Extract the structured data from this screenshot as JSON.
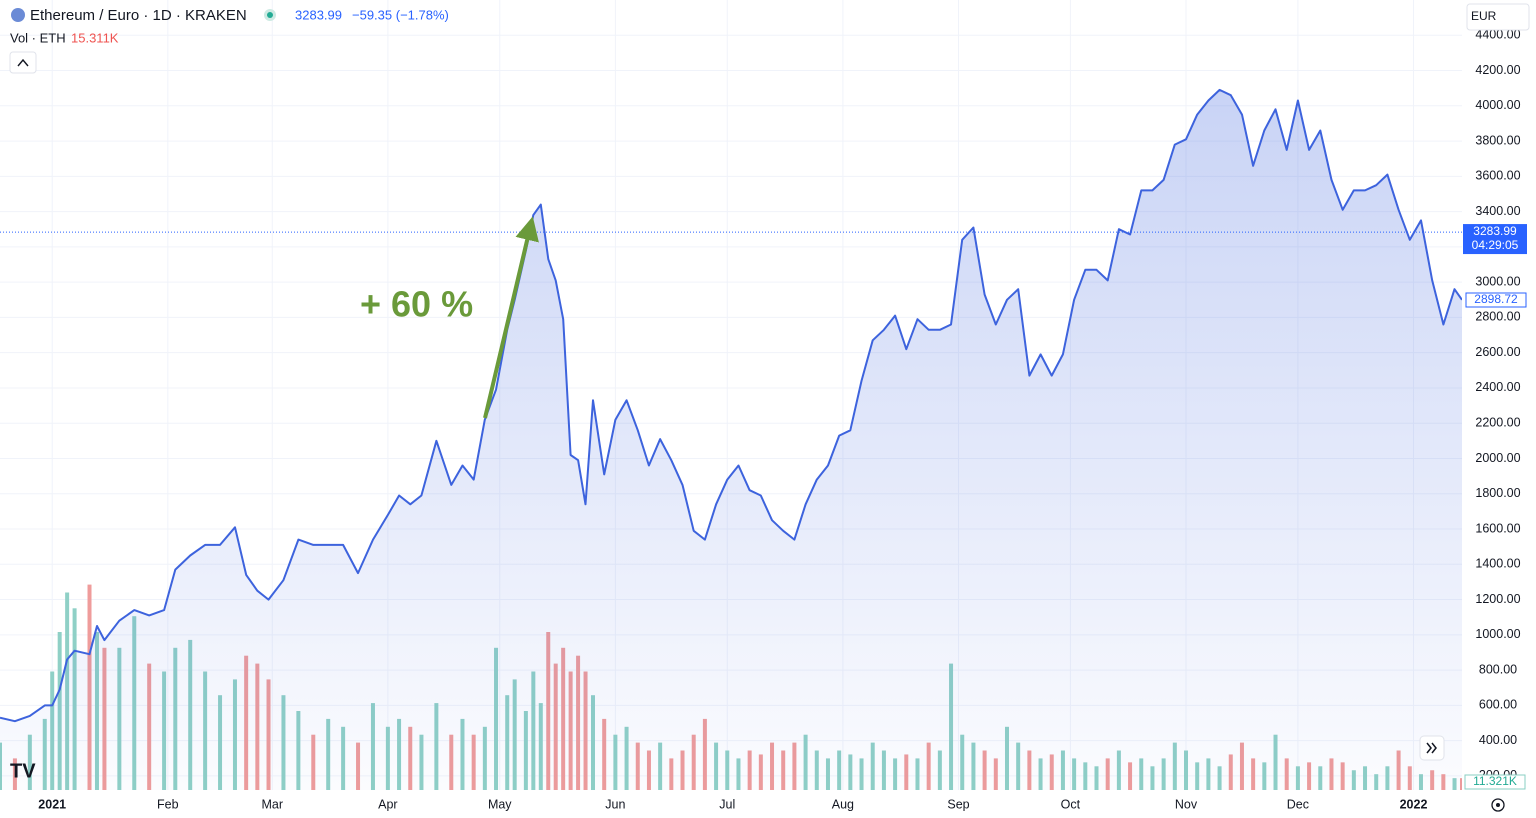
{
  "chart_data": {
    "type": "line",
    "title": "Ethereum / Euro · 1D · KRAKEN",
    "last_price": 3283.99,
    "change": "−59.35 (−1.78%)",
    "volume_label": "Vol · ETH",
    "volume_last": "15.311K",
    "currency": "EUR",
    "countdown": "04:29:05",
    "volume_tag": "11.321K",
    "annotation": "+ 60 %",
    "grid": true,
    "x": [
      -14,
      -10,
      -6,
      -2,
      0,
      2,
      4,
      6,
      10,
      12,
      14,
      18,
      22,
      26,
      30,
      33,
      37,
      41,
      45,
      49,
      52,
      55,
      58,
      62,
      66,
      70,
      74,
      78,
      82,
      86,
      90,
      93,
      96,
      99,
      103,
      107,
      110,
      113,
      116,
      119,
      122,
      124,
      127,
      129,
      131,
      133,
      135,
      137,
      139,
      141,
      143,
      145,
      148,
      151,
      154,
      157,
      160,
      163,
      166,
      169,
      172,
      175,
      178,
      181,
      184,
      187,
      190,
      193,
      196,
      199,
      202,
      205,
      208,
      211,
      214,
      217,
      220,
      223,
      226,
      229,
      232,
      235,
      238,
      241,
      244,
      247,
      250,
      253,
      256,
      259,
      262,
      265,
      268,
      271,
      274,
      277,
      280,
      283,
      286,
      289,
      292,
      295,
      298,
      301,
      304,
      307,
      310,
      313,
      316,
      319,
      322,
      325,
      328,
      331,
      334,
      337,
      340,
      343,
      346,
      349,
      352,
      355,
      358,
      361,
      364,
      367,
      370,
      373,
      376,
      378
    ],
    "series": [
      {
        "color": "#3d63dd",
        "values": [
          530,
          510,
          540,
          600,
          600,
          690,
          860,
          910,
          890,
          1050,
          970,
          1080,
          1140,
          1110,
          1140,
          1370,
          1450,
          1510,
          1510,
          1610,
          1340,
          1250,
          1200,
          1310,
          1540,
          1510,
          1510,
          1510,
          1350,
          1540,
          1680,
          1790,
          1740,
          1790,
          2100,
          1850,
          1960,
          1880,
          2220,
          2390,
          2730,
          2900,
          3180,
          3380,
          3440,
          3130,
          3010,
          2790,
          2020,
          1990,
          1740,
          2330,
          1910,
          2220,
          2330,
          2160,
          1960,
          2110,
          1990,
          1850,
          1590,
          1540,
          1740,
          1880,
          1960,
          1820,
          1790,
          1650,
          1590,
          1540,
          1740,
          1880,
          1960,
          2130,
          2160,
          2440,
          2670,
          2730,
          2810,
          2620,
          2790,
          2730,
          2730,
          2760,
          3240,
          3310,
          2930,
          2760,
          2900,
          2960,
          2470,
          2590,
          2470,
          2590,
          2900,
          3070,
          3070,
          3010,
          3300,
          3270,
          3520,
          3520,
          3580,
          3780,
          3810,
          3950,
          4030,
          4090,
          4060,
          3950,
          3660,
          3860,
          3980,
          3750,
          4030,
          3750,
          3860,
          3580,
          3410,
          3520,
          3520,
          3550,
          3610,
          3410,
          3240,
          3350,
          3010,
          2760,
          2960,
          2900
        ]
      }
    ],
    "volume": {
      "axis": "y2",
      "color_up": "#8fd0c6",
      "color_down": "#ef9c9b",
      "values": [
        60,
        40,
        70,
        90,
        150,
        200,
        250,
        230,
        260,
        200,
        180,
        180,
        220,
        160,
        150,
        180,
        190,
        150,
        120,
        140,
        170,
        160,
        140,
        120,
        100,
        70,
        90,
        80,
        60,
        110,
        80,
        90,
        80,
        70,
        110,
        70,
        90,
        70,
        80,
        180,
        120,
        140,
        100,
        150,
        110,
        200,
        160,
        180,
        150,
        170,
        150,
        120,
        90,
        70,
        80,
        60,
        50,
        60,
        40,
        50,
        70,
        90,
        60,
        50,
        40,
        50,
        45,
        60,
        50,
        60,
        70,
        50,
        40,
        50,
        45,
        40,
        60,
        50,
        40,
        45,
        40,
        60,
        50,
        160,
        70,
        60,
        50,
        40,
        80,
        60,
        50,
        40,
        45,
        50,
        40,
        35,
        30,
        40,
        50,
        35,
        40,
        30,
        40,
        60,
        50,
        35,
        40,
        30,
        45,
        60,
        40,
        35,
        70,
        40,
        30,
        35,
        30,
        40,
        35,
        25,
        30,
        20,
        30,
        50,
        30,
        20,
        25,
        20,
        15,
        15
      ]
    },
    "xlim": [
      -14,
      378
    ],
    "xticks": [
      {
        "value": 0,
        "label": "2021"
      },
      {
        "value": 31,
        "label": "Feb"
      },
      {
        "value": 59,
        "label": "Mar"
      },
      {
        "value": 90,
        "label": "Apr"
      },
      {
        "value": 120,
        "label": "May"
      },
      {
        "value": 151,
        "label": "Jun"
      },
      {
        "value": 181,
        "label": "Jul"
      },
      {
        "value": 212,
        "label": "Aug"
      },
      {
        "value": 243,
        "label": "Sep"
      },
      {
        "value": 273,
        "label": "Oct"
      },
      {
        "value": 304,
        "label": "Nov"
      },
      {
        "value": 334,
        "label": "Dec"
      },
      {
        "value": 365,
        "label": "2022"
      }
    ],
    "ylim": [
      120,
      4600
    ],
    "yticks": [
      {
        "value": 200,
        "label": "200.00"
      },
      {
        "value": 400,
        "label": "400.00"
      },
      {
        "value": 600,
        "label": "600.00"
      },
      {
        "value": 800,
        "label": "800.00"
      },
      {
        "value": 1000,
        "label": "1000.00"
      },
      {
        "value": 1200,
        "label": "1200.00"
      },
      {
        "value": 1400,
        "label": "1400.00"
      },
      {
        "value": 1600,
        "label": "1600.00"
      },
      {
        "value": 1800,
        "label": "1800.00"
      },
      {
        "value": 2000,
        "label": "2000.00"
      },
      {
        "value": 2200,
        "label": "2200.00"
      },
      {
        "value": 2400,
        "label": "2400.00"
      },
      {
        "value": 2600,
        "label": "2600.00"
      },
      {
        "value": 2800,
        "label": "2800.00"
      },
      {
        "value": 3000,
        "label": "3000.00"
      },
      {
        "value": 3200,
        "label": "3200.00"
      },
      {
        "value": 3400,
        "label": "3400.00"
      },
      {
        "value": 3600,
        "label": "3600.00"
      },
      {
        "value": 3800,
        "label": "3800.00"
      },
      {
        "value": 4000,
        "label": "4000.00"
      },
      {
        "value": 4200,
        "label": "4200.00"
      },
      {
        "value": 4400,
        "label": "4400.00"
      }
    ],
    "y2lim": [
      0,
      1000
    ],
    "close_tag": 2898.72
  }
}
